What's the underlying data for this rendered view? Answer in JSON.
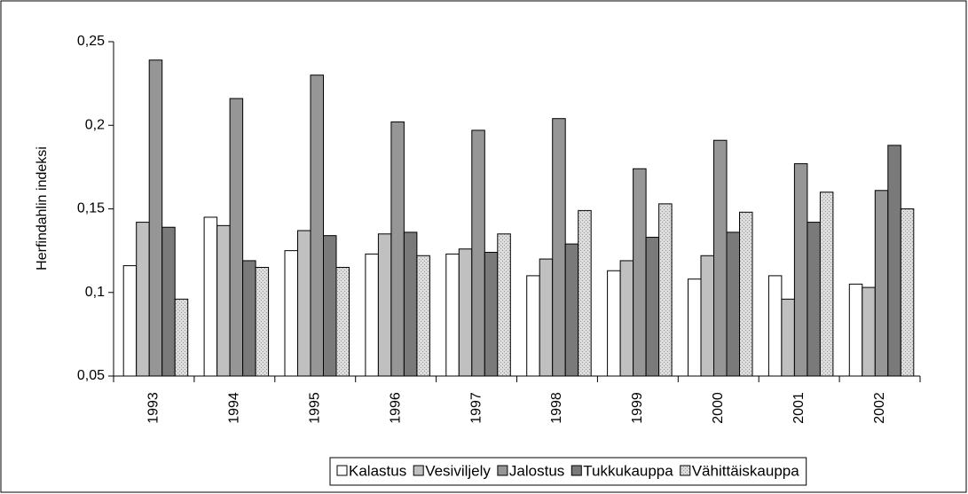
{
  "chart_data": {
    "type": "bar",
    "y_label": "Herfindahlin indeksi",
    "categories": [
      "1993",
      "1994",
      "1995",
      "1996",
      "1997",
      "1998",
      "1999",
      "2000",
      "2001",
      "2002"
    ],
    "series": [
      {
        "name": "Kalastus",
        "color": "#ffffff",
        "values": [
          0.116,
          0.145,
          0.125,
          0.123,
          0.123,
          0.11,
          0.113,
          0.108,
          0.11,
          0.105
        ]
      },
      {
        "name": "Vesiviljely",
        "color": "#c0c0c0",
        "values": [
          0.142,
          0.14,
          0.137,
          0.135,
          0.126,
          0.12,
          0.119,
          0.122,
          0.096,
          0.103
        ]
      },
      {
        "name": "Jalostus",
        "color": "#969696",
        "values": [
          0.239,
          0.216,
          0.23,
          0.202,
          0.197,
          0.204,
          0.174,
          0.191,
          0.177,
          0.161
        ]
      },
      {
        "name": "Tukkukauppa",
        "color": "#7a7a7a",
        "values": [
          0.139,
          0.119,
          0.134,
          0.136,
          0.124,
          0.129,
          0.133,
          0.136,
          0.142,
          0.188
        ]
      },
      {
        "name": "Vähittäiskauppa",
        "color": "#dcdcdc",
        "values": [
          0.096,
          0.115,
          0.115,
          0.122,
          0.135,
          0.149,
          0.153,
          0.148,
          0.16,
          0.15
        ]
      }
    ],
    "ylim": [
      0.05,
      0.25
    ],
    "yticks": [
      {
        "value": 0.05,
        "label": "0,05"
      },
      {
        "value": 0.1,
        "label": "0,1"
      },
      {
        "value": 0.15,
        "label": "0,15"
      },
      {
        "value": 0.2,
        "label": "0,2"
      },
      {
        "value": 0.25,
        "label": "0,25"
      }
    ],
    "legend": "bottom"
  }
}
